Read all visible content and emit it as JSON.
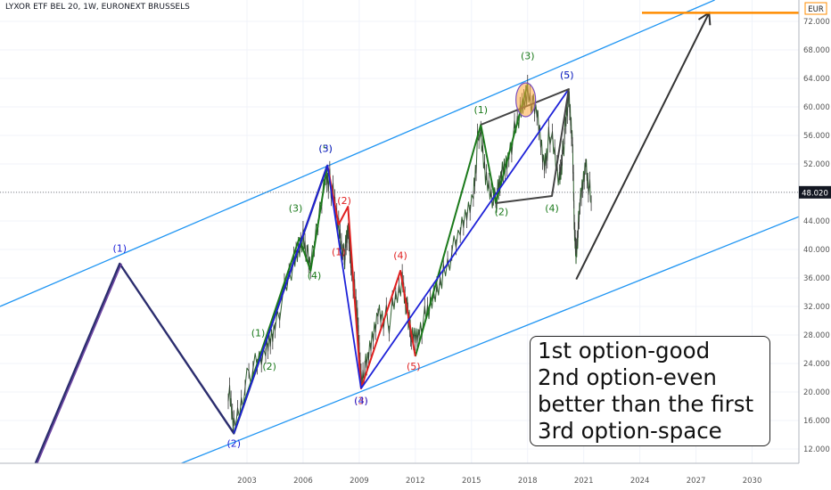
{
  "header": {
    "symbol_line": "LYXOR ETF BEL 20, 1W, EURONEXT BRUSSELS"
  },
  "currency_badge": "EUR",
  "colors": {
    "channel": "#2196f3",
    "impulse_green": "#1b7a1b",
    "corrective_red": "#e02020",
    "wave_blue": "#1e22d8",
    "projection": "#333333",
    "target_line": "#ff8c00",
    "price_tag": "#131722"
  },
  "note_box": {
    "lines": [
      "1st option-good",
      "2nd option-even",
      "better than the first",
      "3rd option-space"
    ]
  },
  "chart_data": {
    "type": "line",
    "y_axis": {
      "ticks": [
        "12.000",
        "16.000",
        "20.000",
        "24.000",
        "28.000",
        "32.000",
        "36.000",
        "40.000",
        "44.000",
        "48.000",
        "52.000",
        "56.000",
        "60.000",
        "64.000",
        "68.000",
        "72.000"
      ],
      "min": 10,
      "max": 75
    },
    "x_axis": {
      "ticks": [
        "2003",
        "2006",
        "2009",
        "2012",
        "2015",
        "2018",
        "2021",
        "2024",
        "2027",
        "2030"
      ],
      "min": 1989.8,
      "max": 2032.5
    },
    "last_price": {
      "label": "48.020",
      "value": 48.02
    },
    "target_level": 73.2,
    "channel_lines": [
      {
        "from": [
          1989.8,
          32.0
        ],
        "to": [
          2028.0,
          75.0
        ]
      },
      {
        "from": [
          1999.5,
          10.0
        ],
        "to": [
          2032.5,
          44.6
        ]
      }
    ],
    "hypothetical_path": [
      [
        1991.7,
        10.0
      ],
      [
        1996.2,
        38.0
      ],
      [
        2002.3,
        14.2
      ],
      [
        2007.3,
        51.8
      ]
    ],
    "price_series": [
      [
        2002.0,
        20.5
      ],
      [
        2002.3,
        15.0
      ],
      [
        2003.1,
        22.5
      ],
      [
        2004.0,
        25.5
      ],
      [
        2004.5,
        30.0
      ],
      [
        2005.5,
        37.5
      ],
      [
        2006.0,
        42.0
      ],
      [
        2006.4,
        37.0
      ],
      [
        2007.2,
        51.0
      ],
      [
        2007.5,
        49.0
      ],
      [
        2007.9,
        43.0
      ],
      [
        2008.2,
        38.5
      ],
      [
        2008.4,
        43.0
      ],
      [
        2008.6,
        38.0
      ],
      [
        2008.9,
        30.0
      ],
      [
        2009.1,
        22.0
      ],
      [
        2009.5,
        24.5
      ],
      [
        2010.0,
        31.5
      ],
      [
        2010.6,
        30.0
      ],
      [
        2011.3,
        35.5
      ],
      [
        2011.6,
        31.0
      ],
      [
        2011.8,
        27.5
      ],
      [
        2012.2,
        29.0
      ],
      [
        2012.8,
        31.5
      ],
      [
        2013.5,
        37.0
      ],
      [
        2014.4,
        42.0
      ],
      [
        2015.1,
        48.0
      ],
      [
        2015.4,
        57.0
      ],
      [
        2015.8,
        49.5
      ],
      [
        2016.3,
        46.5
      ],
      [
        2016.6,
        50.5
      ],
      [
        2017.0,
        54.0
      ],
      [
        2017.6,
        58.5
      ],
      [
        2018.0,
        62.5
      ],
      [
        2018.5,
        58.5
      ],
      [
        2018.9,
        52.0
      ],
      [
        2019.2,
        56.5
      ],
      [
        2019.7,
        49.5
      ],
      [
        2019.9,
        54.0
      ],
      [
        2020.2,
        61.5
      ],
      [
        2020.4,
        56.0
      ],
      [
        2020.5,
        42.0
      ],
      [
        2020.6,
        39.5
      ],
      [
        2020.8,
        46.0
      ],
      [
        2021.1,
        52.5
      ],
      [
        2021.4,
        46.5
      ]
    ],
    "green_impulse": [
      [
        [
          2002.3,
          14.2
        ],
        [
          2005.8,
          41.6
        ],
        [
          2006.4,
          37.0
        ],
        [
          2007.3,
          51.8
        ]
      ],
      [
        [
          2012.0,
          25.0
        ],
        [
          2015.5,
          57.5
        ],
        [
          2016.3,
          46.5
        ],
        [
          2018.0,
          63.2
        ]
      ]
    ],
    "red_correction": [
      [
        2007.3,
        51.8
      ],
      [
        2007.9,
        43.5
      ],
      [
        2008.4,
        46.0
      ],
      [
        2009.1,
        20.5
      ],
      [
        2011.2,
        37.0
      ],
      [
        2012.0,
        25.0
      ]
    ],
    "blue_waves": [
      [
        [
          2002.3,
          14.2
        ],
        [
          2007.3,
          51.8
        ],
        [
          2009.1,
          20.5
        ]
      ],
      [
        [
          2009.1,
          20.5
        ],
        [
          2020.2,
          62.5
        ]
      ]
    ],
    "dark_wave": [
      [
        2015.5,
        57.5
      ],
      [
        2020.2,
        62.5
      ],
      [
        2019.3,
        47.5
      ],
      [
        2016.3,
        46.5
      ]
    ],
    "projection": [
      [
        2020.6,
        35.8
      ],
      [
        2027.7,
        73.2
      ]
    ],
    "highlight_circle": [
      2017.9,
      61.0
    ],
    "wave_labels": [
      {
        "text": "(1)",
        "at": [
          1996.2,
          39.7
        ],
        "color": "#1e22d8"
      },
      {
        "text": "(2)",
        "at": [
          2002.3,
          12.3
        ],
        "color": "#1e22d8"
      },
      {
        "text": "(1)",
        "at": [
          2003.6,
          27.8
        ],
        "color": "#1b7a1b"
      },
      {
        "text": "(2)",
        "at": [
          2004.2,
          23.1
        ],
        "color": "#1b7a1b"
      },
      {
        "text": "(3)",
        "at": [
          2005.6,
          45.3
        ],
        "color": "#1b7a1b"
      },
      {
        "text": "(4)",
        "at": [
          2006.6,
          35.9
        ],
        "color": "#1b7a1b"
      },
      {
        "text": "(5)",
        "at": [
          2007.2,
          53.7
        ],
        "color": "#1b7a1b"
      },
      {
        "text": "(3)",
        "at": [
          2007.2,
          53.7
        ],
        "color": "#1e22d8"
      },
      {
        "text": "(2)",
        "at": [
          2008.2,
          46.4
        ],
        "color": "#e02020"
      },
      {
        "text": "(1)",
        "at": [
          2007.9,
          39.2
        ],
        "color": "#e02020"
      },
      {
        "text": "(3)",
        "at": [
          2009.1,
          18.3
        ],
        "color": "#e02020"
      },
      {
        "text": "(4)",
        "at": [
          2011.2,
          38.7
        ],
        "color": "#e02020"
      },
      {
        "text": "(4)",
        "at": [
          2009.1,
          18.3
        ],
        "color": "#1e22d8"
      },
      {
        "text": "(5)",
        "at": [
          2011.9,
          23.1
        ],
        "color": "#e02020"
      },
      {
        "text": "(1)",
        "at": [
          2015.5,
          59.1
        ],
        "color": "#1b7a1b"
      },
      {
        "text": "(2)",
        "at": [
          2016.6,
          44.8
        ],
        "color": "#1b7a1b"
      },
      {
        "text": "(3)",
        "at": [
          2018.0,
          66.7
        ],
        "color": "#1b7a1b"
      },
      {
        "text": "(4)",
        "at": [
          2019.3,
          45.3
        ],
        "color": "#1b7a1b"
      },
      {
        "text": "(5)",
        "at": [
          2020.1,
          64.0
        ],
        "color": "#1b7a1b"
      },
      {
        "text": "(5)",
        "at": [
          2020.1,
          64.0
        ],
        "color": "#1e22d8"
      }
    ]
  }
}
